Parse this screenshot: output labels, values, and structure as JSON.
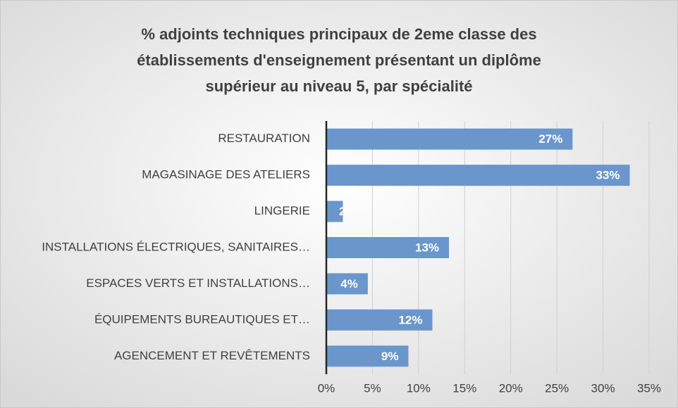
{
  "chart_data": {
    "type": "barh",
    "title": [
      "% adjoints techniques principaux de 2eme classe des",
      "établissements d'enseignement présentant un diplôme",
      "supérieur au niveau 5, par spécialité"
    ],
    "categories": [
      "RESTAURATION",
      "MAGASINAGE DES ATELIERS",
      "LINGERIE",
      "INSTALLATIONS ÉLECTRIQUES, SANITAIRES…",
      "ESPACES VERTS ET INSTALLATIONS…",
      "ÉQUIPEMENTS BUREAUTIQUES ET…",
      "AGENCEMENT ET REVÊTEMENTS"
    ],
    "values": [
      26.7,
      32.9,
      1.8,
      13.3,
      4.5,
      11.5,
      8.9
    ],
    "value_labels": [
      "27%",
      "33%",
      "2",
      "13%",
      "4%",
      "12%",
      "9%"
    ],
    "color": "#6a96cc",
    "xlim": [
      0,
      35
    ],
    "xticks": [
      {
        "value": 0,
        "label": "0%"
      },
      {
        "value": 5,
        "label": "5%"
      },
      {
        "value": 10,
        "label": "10%"
      },
      {
        "value": 15,
        "label": "15%"
      },
      {
        "value": 20,
        "label": "20%"
      },
      {
        "value": 25,
        "label": "25%"
      },
      {
        "value": 30,
        "label": "30%"
      },
      {
        "value": 35,
        "label": "35%"
      }
    ],
    "grid": true
  }
}
